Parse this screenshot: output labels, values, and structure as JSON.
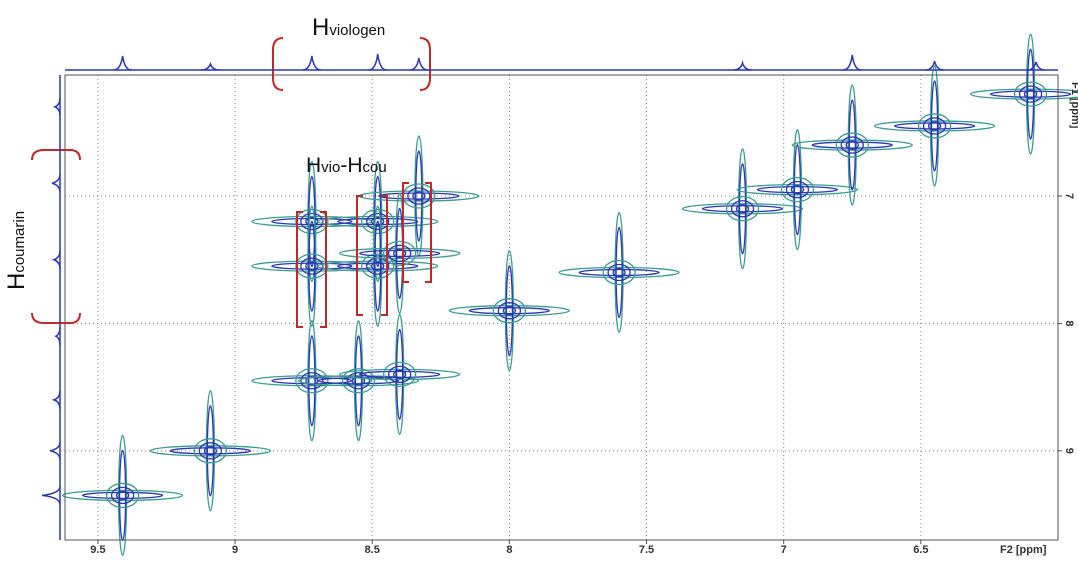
{
  "chart_data": {
    "type": "contour",
    "xlabel": "F2 [ppm]",
    "ylabel": "F1 [ppm]",
    "xlim": [
      9.62,
      6.0
    ],
    "xticks": [
      9.5,
      9.0,
      8.5,
      8.0,
      7.5,
      7.0,
      6.5
    ],
    "ylim": [
      9.7,
      6.05
    ],
    "yticks": [
      7,
      8,
      9
    ],
    "grid": true,
    "contour_colors": [
      "#2b36b3",
      "#3a9c92"
    ],
    "peaks": [
      {
        "x": 9.41,
        "y": 9.35
      },
      {
        "x": 9.09,
        "y": 9.0
      },
      {
        "x": 8.72,
        "y": 8.45
      },
      {
        "x": 8.55,
        "y": 8.45
      },
      {
        "x": 8.4,
        "y": 8.4
      },
      {
        "x": 8.0,
        "y": 7.9
      },
      {
        "x": 7.6,
        "y": 7.6
      },
      {
        "x": 7.15,
        "y": 7.1
      },
      {
        "x": 6.95,
        "y": 6.95
      },
      {
        "x": 6.75,
        "y": 6.6
      },
      {
        "x": 6.45,
        "y": 6.45
      },
      {
        "x": 6.1,
        "y": 6.2
      },
      {
        "x": 8.72,
        "y": 7.2
      },
      {
        "x": 8.48,
        "y": 7.2
      },
      {
        "x": 8.33,
        "y": 7.0
      },
      {
        "x": 8.72,
        "y": 7.55
      },
      {
        "x": 8.48,
        "y": 7.55
      },
      {
        "x": 8.4,
        "y": 7.45
      }
    ],
    "top_projection": {
      "x": [
        9.41,
        9.09,
        8.72,
        8.48,
        8.33,
        7.15,
        6.75,
        6.45,
        6.08
      ],
      "values": [
        14,
        6,
        14,
        16,
        12,
        7,
        15,
        9,
        8
      ]
    },
    "left_projection": {
      "y": [
        6.3,
        6.9,
        7.5,
        8.1,
        8.6,
        9.0,
        9.35
      ],
      "values": [
        5,
        8,
        6,
        4,
        6,
        10,
        18
      ]
    },
    "annotations": [
      {
        "main": "H",
        "sub": "viologen"
      },
      {
        "main": "H",
        "sub": "vio",
        "main2": "-H",
        "sub2": "cou"
      },
      {
        "main": "H",
        "sub": "coumarin"
      }
    ]
  }
}
